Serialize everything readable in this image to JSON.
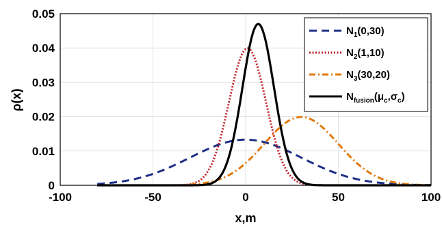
{
  "chart_data": {
    "type": "line",
    "xlabel": "x,m",
    "ylabel": "ρ(x)",
    "xlim": [
      -100,
      100
    ],
    "ylim": [
      0,
      0.05
    ],
    "xticks": [
      "-100",
      "-50",
      "0",
      "50",
      "100"
    ],
    "yticks": [
      "0",
      "0.01",
      "0.02",
      "0.03",
      "0.04",
      "0.05"
    ],
    "grid": true,
    "legend_position": "top-right",
    "series": [
      {
        "name": "N1(0,30)",
        "label_main": "N",
        "label_sub": "1",
        "label_rest": "(0,30)",
        "mean": 0,
        "sigma": 30,
        "x_range": [
          -80,
          100
        ],
        "color": "#1f2f86",
        "style": "dashed",
        "peak": 0.0133
      },
      {
        "name": "N2(1,10)",
        "label_main": "N",
        "label_sub": "2",
        "label_rest": "(1,10)",
        "mean": 1,
        "sigma": 10,
        "x_range": [
          -80,
          100
        ],
        "color": "#c0202a",
        "style": "dotted",
        "peak": 0.0399
      },
      {
        "name": "N3(30,20)",
        "label_main": "N",
        "label_sub": "3",
        "label_rest": "(30,20)",
        "mean": 30,
        "sigma": 20,
        "x_range": [
          -30,
          100
        ],
        "color": "#e07a10",
        "style": "dash-dot",
        "peak": 0.0199
      },
      {
        "name": "Nfusion(μc,σc)",
        "label_main": "N",
        "label_sub": "fusion",
        "label_rest": "(μ",
        "label_sub2": "c",
        "label_rest2": ",σ",
        "label_sub3": "c",
        "label_rest3": ")",
        "mean": 6.8,
        "sigma": 8.5,
        "x_range": [
          -80,
          100
        ],
        "color": "#000000",
        "style": "solid",
        "peak": 0.047
      }
    ]
  }
}
